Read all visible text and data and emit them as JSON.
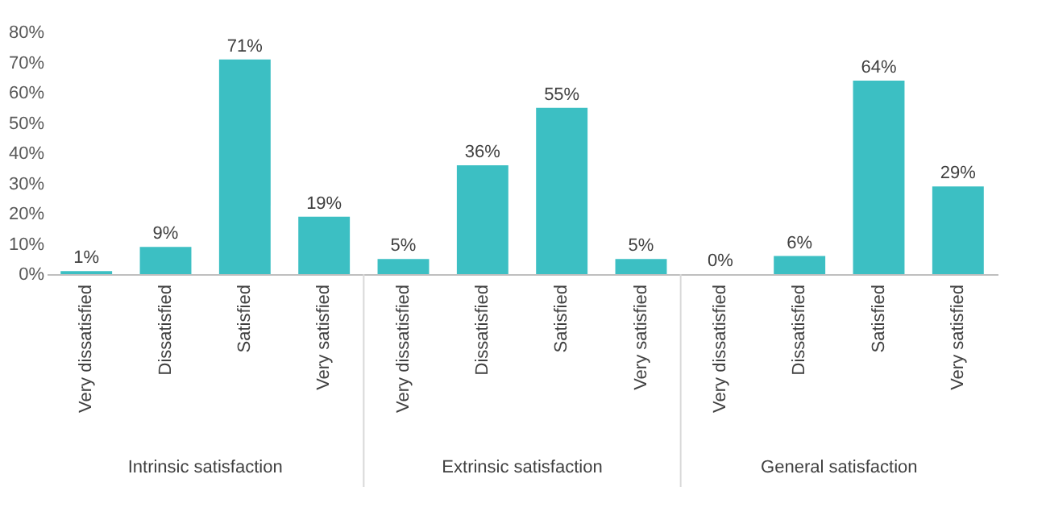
{
  "chart_data": {
    "type": "bar",
    "categories": [
      "Very dissatisfied",
      "Dissatisfied",
      "Satisfied",
      "Very satisfied",
      "Very dissatisfied",
      "Dissatisfied",
      "Satisfied",
      "Very satisfied",
      "Very dissatisfied",
      "Dissatisfied",
      "Satisfied",
      "Very satisfied"
    ],
    "values": [
      1,
      9,
      71,
      19,
      5,
      36,
      55,
      5,
      0,
      6,
      64,
      29
    ],
    "value_labels": [
      "1%",
      "9%",
      "71%",
      "19%",
      "5%",
      "36%",
      "55%",
      "5%",
      "0%",
      "6%",
      "64%",
      "29%"
    ],
    "color": "#3cbfc3",
    "ylim": [
      0,
      80
    ],
    "yticks": [
      {
        "value": 0,
        "label": "0%"
      },
      {
        "value": 10,
        "label": "10%"
      },
      {
        "value": 20,
        "label": "20%"
      },
      {
        "value": 30,
        "label": "30%"
      },
      {
        "value": 40,
        "label": "40%"
      },
      {
        "value": 50,
        "label": "50%"
      },
      {
        "value": 60,
        "label": "60%"
      },
      {
        "value": 70,
        "label": "70%"
      },
      {
        "value": 80,
        "label": "80%"
      }
    ],
    "annotations": [
      "Intrinsic satisfaction",
      "Extrinsic satisfaction",
      "General satisfaction"
    ],
    "grid": false
  }
}
